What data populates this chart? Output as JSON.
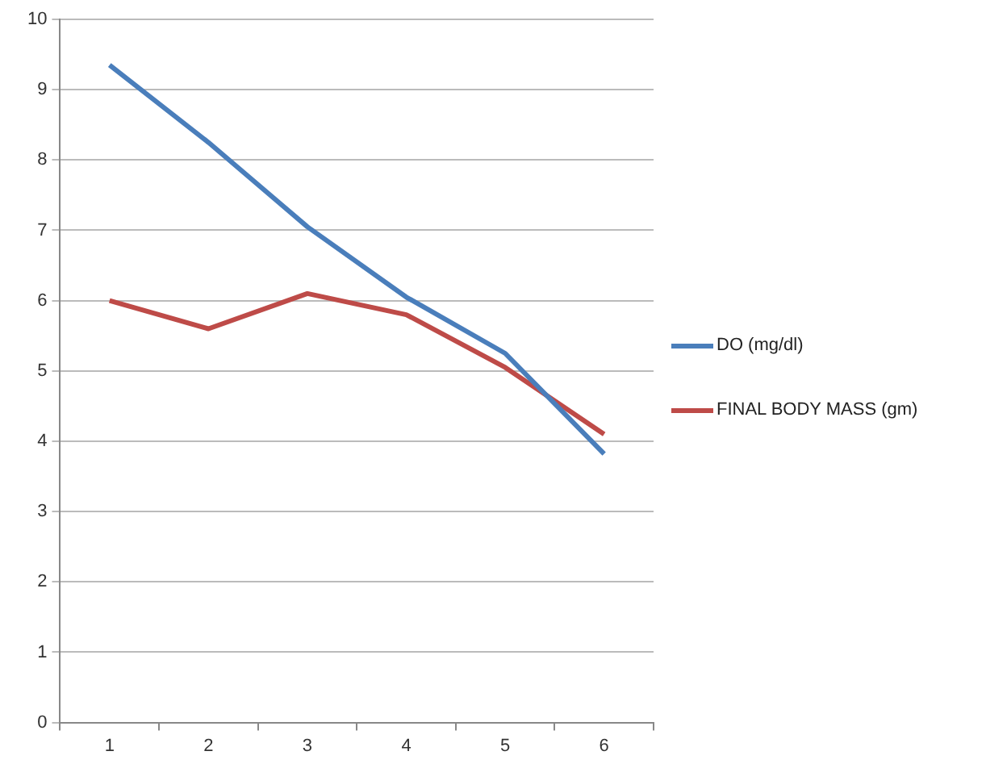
{
  "chart_data": {
    "type": "line",
    "categories": [
      "1",
      "2",
      "3",
      "4",
      "5",
      "6"
    ],
    "series": [
      {
        "name": "DO (mg/dl)",
        "color": "#4a7ebb",
        "values": [
          9.35,
          8.25,
          7.05,
          6.05,
          5.25,
          3.82
        ]
      },
      {
        "name": "FINAL BODY MASS (gm)",
        "color": "#be4b48",
        "values": [
          6.0,
          5.6,
          6.1,
          5.8,
          5.05,
          4.1
        ]
      }
    ],
    "ylim": [
      0,
      10
    ],
    "yticks": [
      0,
      1,
      2,
      3,
      4,
      5,
      6,
      7,
      8,
      9,
      10
    ],
    "grid": "y",
    "legend": "right",
    "marker": "none",
    "line_style": "solid"
  }
}
